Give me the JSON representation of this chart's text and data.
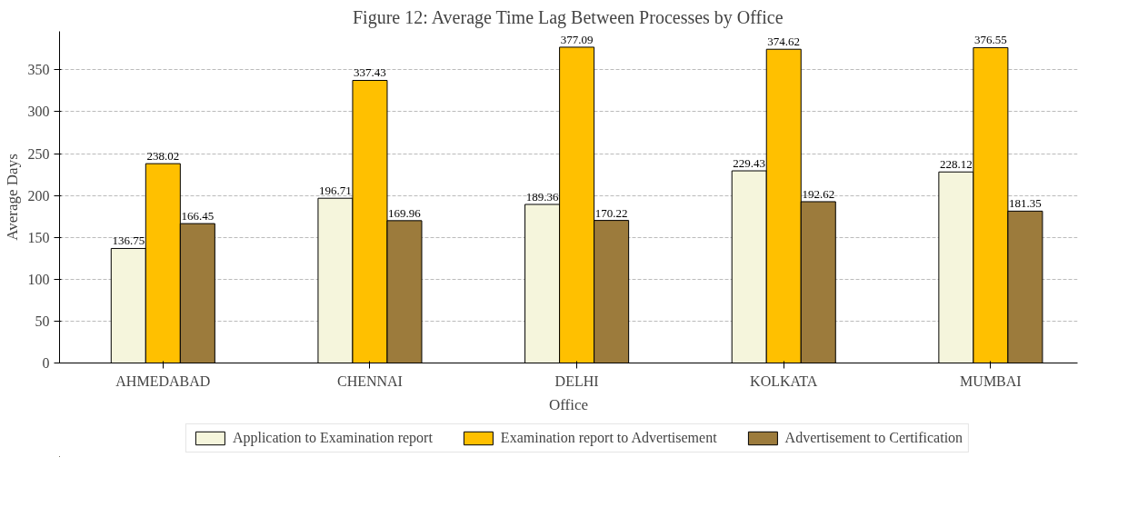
{
  "chart_data": {
    "type": "bar",
    "title": "Figure 12: Average Time Lag Between Processes by Office",
    "xlabel": "Office",
    "ylabel": "Average Days",
    "categories": [
      "AHMEDABAD",
      "CHENNAI",
      "DELHI",
      "KOLKATA",
      "MUMBAI"
    ],
    "series": [
      {
        "name": "Application to Examination report",
        "color": "#f5f5dc",
        "values": [
          136.75,
          196.71,
          189.36,
          229.43,
          228.12
        ]
      },
      {
        "name": "Examination report to Advertisement",
        "color": "#ffc000",
        "values": [
          238.02,
          337.43,
          377.09,
          374.62,
          376.55
        ]
      },
      {
        "name": "Advertisement to Certification",
        "color": "#9c7b3c",
        "values": [
          166.45,
          169.96,
          170.22,
          192.62,
          181.35
        ]
      }
    ],
    "ylim": [
      0,
      396
    ],
    "yticks": [
      0,
      50,
      100,
      150,
      200,
      250,
      300,
      350
    ],
    "grid": "y",
    "legend": "bottom",
    "data_labels": true
  }
}
